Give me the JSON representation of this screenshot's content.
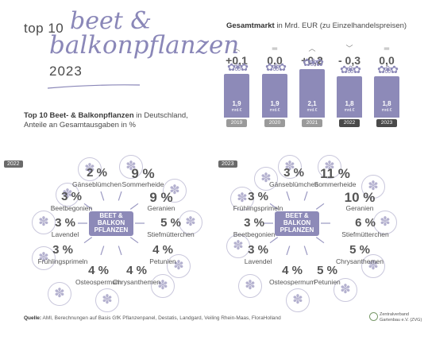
{
  "header": {
    "prefix": "top 10",
    "script_line1": "beet &",
    "script_line2": "balkonpflanzen",
    "year": "2023"
  },
  "subtitle": {
    "bold": "Top 10 Beet- & Balkonpflanzen",
    "rest1": " in Deutschland,",
    "line2": "Anteile an Gesamtausgaben in %"
  },
  "market": {
    "title_bold": "Gesamtmarkt",
    "title_rest": " in Mrd. EUR (zu Einzelhandelspreisen)",
    "unit": "mrd.€"
  },
  "source": {
    "label": "Quelle:",
    "text": " AMI, Berechnungen auf Basis GfK Pflanzenpanel, Destatis, Landgard, Veiling Rhein-Maas, FloraHolland"
  },
  "logo": {
    "line1": "Zentralverband",
    "line2": "Gartenbau e.V. (ZVG)"
  },
  "center_label": {
    "line1": "BEET &",
    "line2": "BALKON",
    "line3": "PFLANZEN"
  },
  "colors": {
    "accent": "#8a87b8",
    "bar": "#8d8ab8",
    "year_recent": "#4a4a4a",
    "year_old": "#9a9a9a"
  },
  "chart_data": [
    {
      "type": "bar",
      "title": "Gesamtmarkt in Mrd. EUR (zu Einzelhandelspreisen)",
      "categories": [
        "2019",
        "2020",
        "2021",
        "2022",
        "2023"
      ],
      "values": [
        1.9,
        1.9,
        2.1,
        1.8,
        1.8
      ],
      "value_labels": [
        "1,9",
        "1,9",
        "2,1",
        "1,8",
        "1,8"
      ],
      "changes": [
        "+0,1",
        "0,0",
        "+0,2",
        "- 0,3",
        "0,0"
      ],
      "change_arrows": [
        "up",
        "flat",
        "up",
        "down",
        "flat"
      ]
    },
    {
      "type": "table",
      "year": "2022",
      "items": [
        {
          "name": "Gänseblümchen",
          "pct": "2 %",
          "value": 2
        },
        {
          "name": "Sommerheide",
          "pct": "9 %",
          "value": 9
        },
        {
          "name": "Geranien",
          "pct": "9 %",
          "value": 9
        },
        {
          "name": "Stiefmütterchen",
          "pct": "5 %",
          "value": 5
        },
        {
          "name": "Petunien",
          "pct": "4 %",
          "value": 4
        },
        {
          "name": "Chrysanthemen",
          "pct": "4 %",
          "value": 4
        },
        {
          "name": "Osteospermum",
          "pct": "4 %",
          "value": 4
        },
        {
          "name": "Frühlingsprimeln",
          "pct": "3 %",
          "value": 3
        },
        {
          "name": "Lavendel",
          "pct": "3 %",
          "value": 3
        },
        {
          "name": "Beetbegonien",
          "pct": "3 %",
          "value": 3
        }
      ]
    },
    {
      "type": "table",
      "year": "2023",
      "items": [
        {
          "name": "Gänseblümchen",
          "pct": "3 %",
          "value": 3
        },
        {
          "name": "Sommerheide",
          "pct": "11 %",
          "value": 11
        },
        {
          "name": "Geranien",
          "pct": "10 %",
          "value": 10
        },
        {
          "name": "Stiefmütterchen",
          "pct": "6 %",
          "value": 6
        },
        {
          "name": "Chrysanthemen",
          "pct": "5 %",
          "value": 5
        },
        {
          "name": "Petunien",
          "pct": "5 %",
          "value": 5
        },
        {
          "name": "Osteospermum",
          "pct": "4 %",
          "value": 4
        },
        {
          "name": "Lavendel",
          "pct": "3 %",
          "value": 3
        },
        {
          "name": "Beetbegonien",
          "pct": "3 %",
          "value": 3
        },
        {
          "name": "Frühlingsprimeln",
          "pct": "3 %",
          "value": 3
        }
      ]
    }
  ]
}
